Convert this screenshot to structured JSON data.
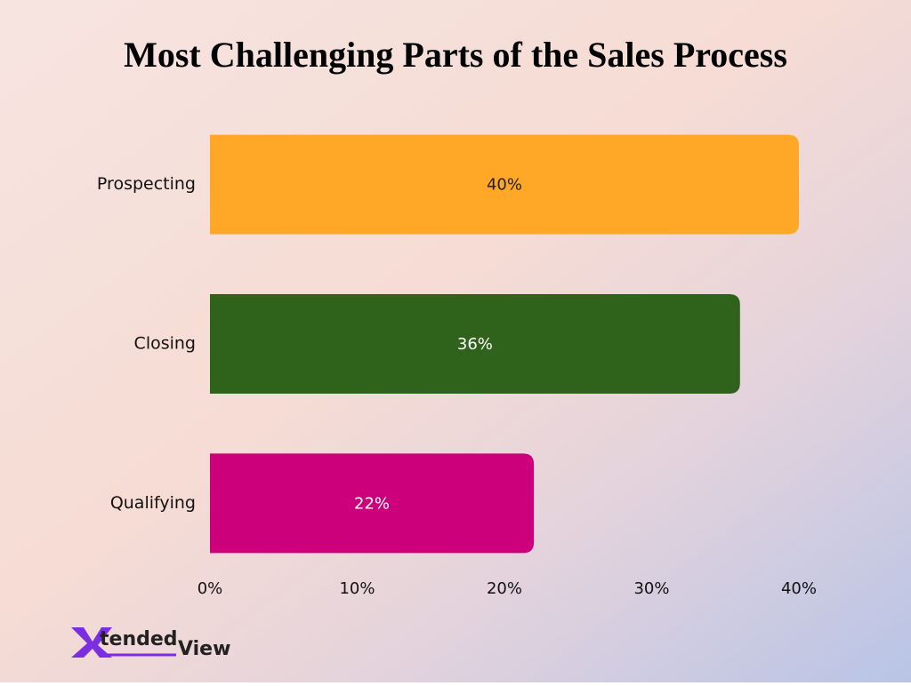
{
  "chart_data": {
    "type": "bar",
    "orientation": "horizontal",
    "title": "Most Challenging Parts of the Sales Process",
    "categories": [
      "Prospecting",
      "Closing",
      "Qualifying"
    ],
    "values": [
      40,
      36,
      22
    ],
    "value_labels": [
      "40%",
      "36%",
      "22%"
    ],
    "colors": [
      "#ffa726",
      "#2f631b",
      "#cc007a"
    ],
    "xlim": [
      0,
      40
    ],
    "xticks": [
      {
        "value": 0,
        "label": "0%"
      },
      {
        "value": 10,
        "label": "10%"
      },
      {
        "value": 20,
        "label": "20%"
      },
      {
        "value": 30,
        "label": "30%"
      },
      {
        "value": 40,
        "label": "40%"
      }
    ],
    "grid": false
  },
  "logo": {
    "mark": "X",
    "word1": "tended",
    "word2": "View"
  }
}
